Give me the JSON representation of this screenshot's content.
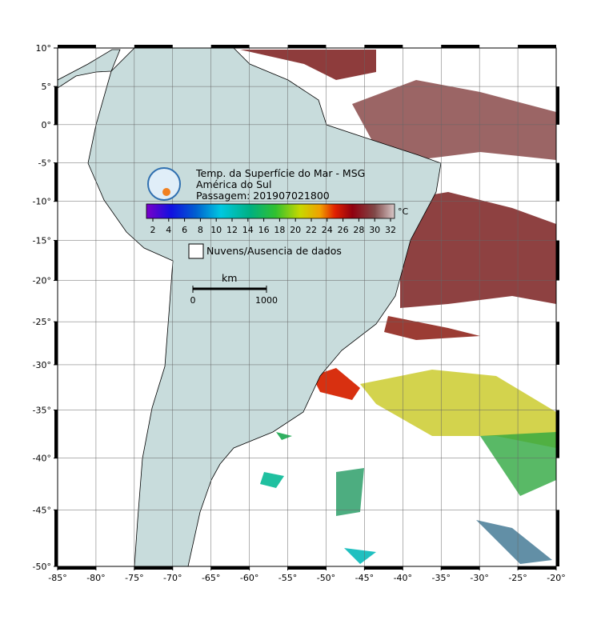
{
  "map": {
    "title": "Temp. da Superfície do Mar - MSG",
    "region": "América do Sul",
    "pass": "Passagem: 201907021800",
    "colorbar": {
      "unit": "°C",
      "ticks": [
        2,
        4,
        6,
        8,
        10,
        12,
        14,
        16,
        18,
        20,
        22,
        24,
        26,
        28,
        30,
        32
      ]
    },
    "legend": "Nuvens/Ausencia de dados",
    "scale_bar": {
      "unit": "km",
      "ticks": [
        0,
        1000
      ]
    },
    "lon_ticks": [
      {
        "value": -85,
        "label": "-85°"
      },
      {
        "value": -80,
        "label": "-80°"
      },
      {
        "value": -75,
        "label": "-75°"
      },
      {
        "value": -70,
        "label": "-70°"
      },
      {
        "value": -65,
        "label": "-65°"
      },
      {
        "value": -60,
        "label": "-60°"
      },
      {
        "value": -55,
        "label": "-55°"
      },
      {
        "value": -50,
        "label": "-50°"
      },
      {
        "value": -45,
        "label": "-45°"
      },
      {
        "value": -40,
        "label": "-40°"
      },
      {
        "value": -35,
        "label": "-35°"
      },
      {
        "value": -30,
        "label": "-30°"
      },
      {
        "value": -25,
        "label": "-25°"
      },
      {
        "value": -20,
        "label": "-20°"
      }
    ],
    "lat_ticks": [
      {
        "value": 10,
        "label": "10°"
      },
      {
        "value": 5,
        "label": "5°"
      },
      {
        "value": 0,
        "label": "0°"
      },
      {
        "value": -5,
        "label": "-5°"
      },
      {
        "value": -10,
        "label": "-10°"
      },
      {
        "value": -15,
        "label": "-15°"
      },
      {
        "value": -20,
        "label": "-20°"
      },
      {
        "value": -25,
        "label": "-25°"
      },
      {
        "value": -30,
        "label": "-30°"
      },
      {
        "value": -35,
        "label": "-35°"
      },
      {
        "value": -40,
        "label": "-40°"
      },
      {
        "value": -45,
        "label": "-45°"
      },
      {
        "value": -50,
        "label": "-50°"
      }
    ]
  }
}
